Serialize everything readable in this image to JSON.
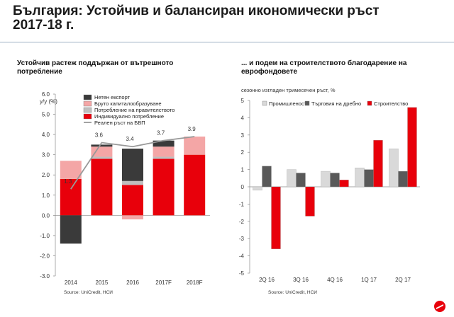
{
  "page_title": "България: Устойчив и балансиран икономически ръст 2017-18 г.",
  "left_panel": {
    "title": "Устойчив растеж поддържан от вътрешното потребление",
    "source": "Source: UniCredit, НСИ"
  },
  "right_panel": {
    "title": "... и подем на строителството благодарение на еврофондовете",
    "source": "Source: UniCredit, НСИ"
  },
  "chart_data": [
    {
      "type": "bar",
      "stacked": true,
      "unit_label": "y/y (%)",
      "categories": [
        "2014",
        "2015",
        "2016",
        "2017F",
        "2018F"
      ],
      "ylim": [
        -3.0,
        6.0
      ],
      "yticks": [
        "6.0",
        "5.0",
        "4.0",
        "3.0",
        "2.0",
        "1.0",
        "0.0",
        "-1.0",
        "-2.0",
        "-3.0"
      ],
      "grid": false,
      "legend_position": "top-left",
      "series": [
        {
          "name": "Нетен експорт",
          "color": "#3a3a3a",
          "values": [
            -1.4,
            0.1,
            1.6,
            0.3,
            0.0
          ]
        },
        {
          "name": "Бруто капиталообразуване",
          "color": "#f4a6a6",
          "values": [
            0.9,
            0.5,
            -0.2,
            0.5,
            0.9
          ]
        },
        {
          "name": "Потребление на правителството",
          "color": "#bfbfbf",
          "values": [
            0.0,
            0.1,
            0.2,
            0.1,
            0.0
          ]
        },
        {
          "name": "Индивидуално потребление",
          "color": "#e8000b",
          "values": [
            1.8,
            2.8,
            1.5,
            2.8,
            3.0
          ]
        }
      ],
      "line": {
        "name": "Реален ръст на БВП",
        "color": "#999999",
        "values": [
          1.3,
          3.6,
          3.4,
          3.7,
          3.9
        ]
      },
      "data_labels": [
        "1.3",
        "3.6",
        "3.4",
        "3.7",
        "3.9"
      ]
    },
    {
      "type": "bar",
      "unit_label": "сезонно изгладен тримесечен ръст, %",
      "categories": [
        "2Q 16",
        "3Q 16",
        "4Q 16",
        "1Q 17",
        "2Q 17"
      ],
      "ylim": [
        -5,
        5
      ],
      "yticks": [
        "5",
        "4",
        "3",
        "2",
        "1",
        "0",
        "-1",
        "-2",
        "-3",
        "-4",
        "-5"
      ],
      "grid": false,
      "legend_position": "top",
      "series": [
        {
          "name": "Промишленост",
          "color": "#d9d9d9",
          "values": [
            -0.2,
            1.0,
            0.9,
            1.1,
            2.2
          ]
        },
        {
          "name": "Търговия на дребно",
          "color": "#595959",
          "values": [
            1.2,
            0.8,
            0.8,
            1.0,
            0.9
          ]
        },
        {
          "name": "Строителство",
          "color": "#e8000b",
          "values": [
            -3.6,
            -1.7,
            0.4,
            2.7,
            4.6
          ]
        }
      ]
    }
  ]
}
